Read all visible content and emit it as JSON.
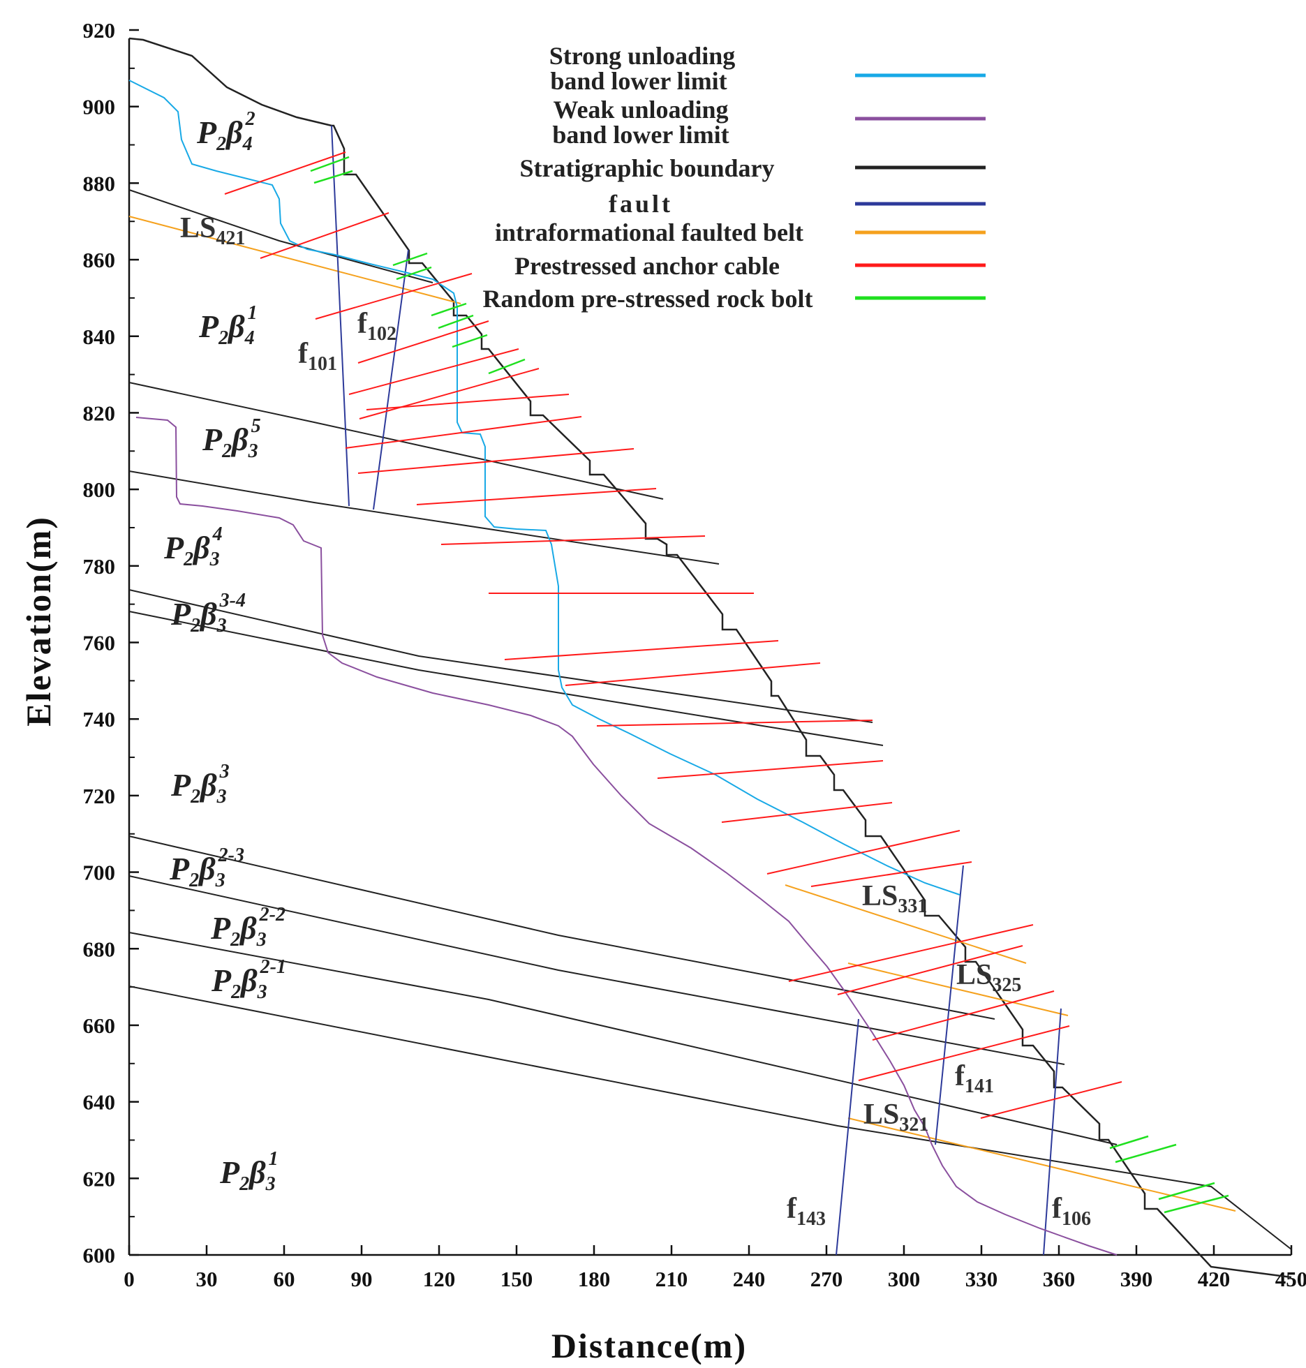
{
  "axes": {
    "x_label": "Distance(m)",
    "y_label": "Elevation(m)",
    "x_ticks": [
      "0",
      "30",
      "60",
      "90",
      "120",
      "150",
      "180",
      "210",
      "240",
      "270",
      "300",
      "330",
      "360",
      "390",
      "420",
      "450"
    ],
    "y_ticks": [
      "600",
      "620",
      "640",
      "660",
      "680",
      "700",
      "720",
      "740",
      "760",
      "780",
      "800",
      "820",
      "840",
      "860",
      "880",
      "900",
      "920"
    ]
  },
  "legend": [
    {
      "lines": [
        "Strong unloading",
        "band lower limit"
      ],
      "color": "#18a9e6"
    },
    {
      "lines": [
        "Weak unloading",
        "band lower limit"
      ],
      "color": "#8a4f9e"
    },
    {
      "lines": [
        "Stratigraphic boundary"
      ],
      "color": "#222222"
    },
    {
      "lines": [
        "fault"
      ],
      "color": "#2d3a9a"
    },
    {
      "lines": [
        "intraformational faulted belt"
      ],
      "color": "#f5a11d"
    },
    {
      "lines": [
        "Prestressed anchor cable"
      ],
      "color": "#ff1a1a"
    },
    {
      "lines": [
        "Random pre-stressed rock bolt"
      ],
      "color": "#1fe01f"
    }
  ],
  "units": [
    {
      "base": "P",
      "sub": "2",
      "beta": "β",
      "unit_sub": "4",
      "sup": "2"
    },
    {
      "base": "P",
      "sub": "2",
      "beta": "β",
      "unit_sub": "4",
      "sup": "1"
    },
    {
      "base": "P",
      "sub": "2",
      "beta": "β",
      "unit_sub": "3",
      "sup": "5"
    },
    {
      "base": "P",
      "sub": "2",
      "beta": "β",
      "unit_sub": "3",
      "sup": "4"
    },
    {
      "base": "P",
      "sub": "2",
      "beta": "β",
      "unit_sub": "3",
      "sup": "3-4"
    },
    {
      "base": "P",
      "sub": "2",
      "beta": "β",
      "unit_sub": "3",
      "sup": "3"
    },
    {
      "base": "P",
      "sub": "2",
      "beta": "β",
      "unit_sub": "3",
      "sup": "2-3"
    },
    {
      "base": "P",
      "sub": "2",
      "beta": "β",
      "unit_sub": "3",
      "sup": "2-2"
    },
    {
      "base": "P",
      "sub": "2",
      "beta": "β",
      "unit_sub": "3",
      "sup": "2-1"
    },
    {
      "base": "P",
      "sub": "2",
      "beta": "β",
      "unit_sub": "3",
      "sup": "1"
    }
  ],
  "features": [
    {
      "base": "LS",
      "sub": "421"
    },
    {
      "base": "f",
      "sub": "101"
    },
    {
      "base": "f",
      "sub": "102"
    },
    {
      "base": "LS",
      "sub": "331"
    },
    {
      "base": "LS",
      "sub": "325"
    },
    {
      "base": "f",
      "sub": "141"
    },
    {
      "base": "LS",
      "sub": "321"
    },
    {
      "base": "f",
      "sub": "143"
    },
    {
      "base": "f",
      "sub": "106"
    }
  ]
}
